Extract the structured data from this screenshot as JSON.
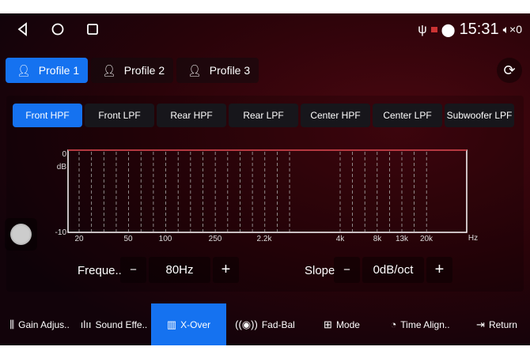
{
  "status": {
    "time": "15:31",
    "volume": "0"
  },
  "profiles": [
    {
      "label": "Profile 1",
      "active": true
    },
    {
      "label": "Profile 2"
    },
    {
      "label": "Profile 3"
    }
  ],
  "tabs": [
    {
      "label": "Front HPF",
      "active": true
    },
    {
      "label": "Front LPF"
    },
    {
      "label": "Rear HPF"
    },
    {
      "label": "Rear LPF"
    },
    {
      "label": "Center HPF"
    },
    {
      "label": "Center LPF"
    },
    {
      "label": "Subwoofer LPF"
    }
  ],
  "chart": {
    "y_top": "0",
    "y_unit": "dB",
    "y_bottom": "-10",
    "x_unit": "Hz",
    "x_ticks": [
      "20",
      "50",
      "100",
      "250",
      "2.2k",
      "4k",
      "8k",
      "13k",
      "20k"
    ],
    "curve_db": 0,
    "curve_color": "#c0202a"
  },
  "controls": {
    "freq_label": "Freque..",
    "freq_value": "80Hz",
    "slope_label": "Slope",
    "slope_value": "0dB/oct",
    "minus": "−",
    "plus": "+"
  },
  "bottom_nav": [
    {
      "label": "Gain Adjus..",
      "icon": "sliders-icon"
    },
    {
      "label": "Sound Effe..",
      "icon": "waveform-icon"
    },
    {
      "label": "X-Over",
      "icon": "equalizer-icon",
      "active": true
    },
    {
      "label": "Fad-Bal",
      "icon": "speaker-balance-icon"
    },
    {
      "label": "Mode",
      "icon": "mode-icon"
    },
    {
      "label": "Time Align..",
      "icon": "timer-icon"
    },
    {
      "label": "Return",
      "icon": "return-icon"
    }
  ],
  "accent": "#1572f0"
}
